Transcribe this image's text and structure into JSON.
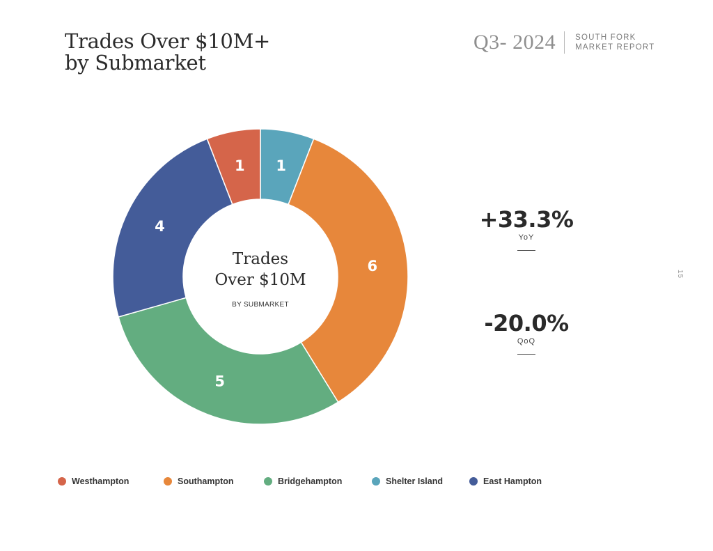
{
  "header": {
    "title_line1": "Trades Over $10M+",
    "title_line2": "by Submarket",
    "quarter": "Q3- 2024",
    "report_line1": "SOUTH FORK",
    "report_line2": "MARKET REPORT",
    "page_number": "15"
  },
  "center": {
    "line1": "Trades",
    "line2": "Over $10M",
    "sub": "BY SUBMARKET"
  },
  "stats": {
    "yoy_value": "+33.3%",
    "yoy_label": "YoY",
    "qoq_value": "-20.0%",
    "qoq_label": "QoQ"
  },
  "chart_data": {
    "type": "pie",
    "donut": true,
    "start_category": "Shelter Island",
    "direction": "clockwise",
    "categories": [
      "Shelter Island",
      "Southampton",
      "Bridgehampton",
      "East Hampton",
      "Westhampton"
    ],
    "values": [
      1,
      6,
      5,
      4,
      1
    ],
    "colors": [
      "#5aa5bb",
      "#e7873b",
      "#63ad80",
      "#445c99",
      "#d5654a"
    ],
    "legend": [
      {
        "name": "Westhampton",
        "color": "#d5654a"
      },
      {
        "name": "Southampton",
        "color": "#e7873b"
      },
      {
        "name": "Bridgehampton",
        "color": "#63ad80"
      },
      {
        "name": "Shelter Island",
        "color": "#5aa5bb"
      },
      {
        "name": "East Hampton",
        "color": "#445c99"
      }
    ],
    "legend_placement": "bottom"
  }
}
